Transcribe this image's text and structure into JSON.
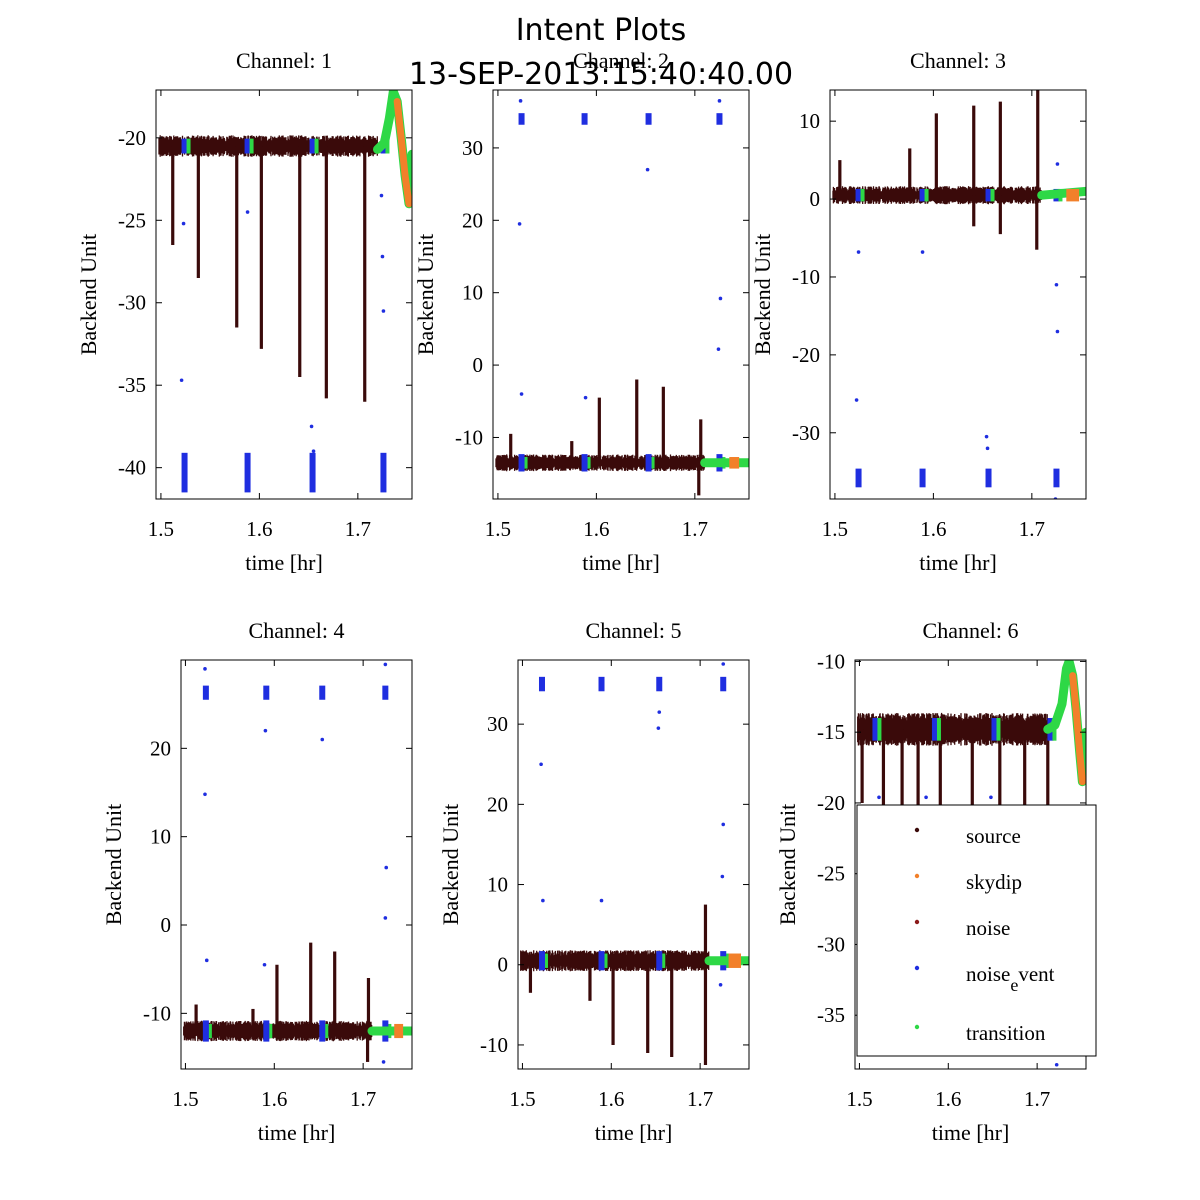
{
  "figure": {
    "title": "Intent Plots",
    "subtitle": "13-SEP-2013:15:40:40.00"
  },
  "colors": {
    "source": "#3a0a0a",
    "skydip": "#f2802a",
    "noise": "#8b1a1a",
    "noise_event": "#1f2ee0",
    "transition": "#2ed846",
    "axis": "#000000"
  },
  "legend": {
    "placement": "inside lower-right of Channel: 6",
    "entries": [
      {
        "key": "source",
        "label": "source"
      },
      {
        "key": "skydip",
        "label": "skydip"
      },
      {
        "key": "noise",
        "label": "noise"
      },
      {
        "key": "noise_event",
        "label": "noise",
        "sub": "e",
        "suffix": "vent"
      },
      {
        "key": "transition",
        "label": "transition"
      }
    ]
  },
  "chart_data": [
    {
      "type": "scatter",
      "title": "Channel: 1",
      "xlabel": "time [hr]",
      "ylabel": "Backend Unit",
      "xlim": [
        1.495,
        1.755
      ],
      "ylim": [
        -41.9,
        -17.1
      ],
      "xticks": [
        1.5,
        1.6,
        1.7
      ],
      "yticks": [
        -20,
        -25,
        -30,
        -35,
        -40
      ],
      "baseline": -20.5,
      "noise_amp": 0.45,
      "cal_times": [
        1.524,
        1.588,
        1.654,
        1.726
      ],
      "cal_high": -20.5,
      "cal_low": -40.3,
      "spikes": [
        {
          "x": 1.512,
          "to": -26.5
        },
        {
          "x": 1.538,
          "to": -28.5
        },
        {
          "x": 1.577,
          "to": -31.5
        },
        {
          "x": 1.602,
          "to": -32.8
        },
        {
          "x": 1.641,
          "to": -34.5
        },
        {
          "x": 1.668,
          "to": -35.8
        },
        {
          "x": 1.707,
          "to": -36.0
        }
      ],
      "outliers": [
        [
          1.521,
          -34.7
        ],
        [
          1.523,
          -25.2
        ],
        [
          1.588,
          -24.5
        ],
        [
          1.653,
          -37.5
        ],
        [
          1.655,
          -39.0
        ],
        [
          1.725,
          -27.2
        ],
        [
          1.726,
          -30.5
        ],
        [
          1.724,
          -23.5
        ]
      ],
      "tail_points": [
        [
          1.72,
          -20.7
        ],
        [
          1.727,
          -20.3
        ],
        [
          1.732,
          -18.8
        ],
        [
          1.736,
          -17.2
        ],
        [
          1.74,
          -17.8
        ],
        [
          1.744,
          -20.0
        ],
        [
          1.748,
          -22.3
        ],
        [
          1.752,
          -24.0
        ],
        [
          1.755,
          -21.0
        ]
      ],
      "tail_skydip_range": [
        1.737,
        1.752
      ]
    },
    {
      "type": "scatter",
      "title": "Channel: 2",
      "xlabel": "time [hr]",
      "ylabel": "Backend Unit",
      "xlim": [
        1.495,
        1.755
      ],
      "ylim": [
        -18.5,
        38
      ],
      "xticks": [
        1.5,
        1.6,
        1.7
      ],
      "yticks": [
        30,
        20,
        10,
        0,
        -10
      ],
      "baseline": -13.5,
      "noise_amp": 0.8,
      "cal_times": [
        1.524,
        1.588,
        1.653,
        1.725
      ],
      "cal_high": 34.0,
      "cal_low": -13.5,
      "spikes": [
        {
          "x": 1.513,
          "to": -9.5
        },
        {
          "x": 1.575,
          "to": -10.5
        },
        {
          "x": 1.603,
          "to": -4.5
        },
        {
          "x": 1.641,
          "to": -2.0
        },
        {
          "x": 1.668,
          "to": -3.0
        },
        {
          "x": 1.706,
          "to": -7.5
        },
        {
          "x": 1.704,
          "to": -18.0
        }
      ],
      "outliers": [
        [
          1.522,
          19.5
        ],
        [
          1.524,
          -4.0
        ],
        [
          1.589,
          -4.5
        ],
        [
          1.652,
          27.0
        ],
        [
          1.726,
          9.2
        ],
        [
          1.724,
          2.2
        ],
        [
          1.725,
          36.5
        ],
        [
          1.523,
          36.5
        ]
      ],
      "tail_points": [
        [
          1.71,
          -13.5
        ],
        [
          1.755,
          -13.5
        ]
      ],
      "tail_skydip_range": [
        1.735,
        1.745
      ]
    },
    {
      "type": "scatter",
      "title": "Channel: 3",
      "xlabel": "time [hr]",
      "ylabel": "Backend Unit",
      "xlim": [
        1.495,
        1.755
      ],
      "ylim": [
        -38.5,
        14
      ],
      "xticks": [
        1.5,
        1.6,
        1.7
      ],
      "yticks": [
        10,
        0,
        -10,
        -20,
        -30
      ],
      "baseline": 0.5,
      "noise_amp": 0.8,
      "cal_times": [
        1.524,
        1.589,
        1.656,
        1.725
      ],
      "cal_high": 0.5,
      "cal_low": -35.8,
      "spikes": [
        {
          "x": 1.505,
          "to": 5.0
        },
        {
          "x": 1.576,
          "to": 6.5
        },
        {
          "x": 1.603,
          "to": 11.0
        },
        {
          "x": 1.641,
          "to": 12.0
        },
        {
          "x": 1.668,
          "to": 12.5
        },
        {
          "x": 1.706,
          "to": 14.0
        },
        {
          "x": 1.705,
          "to": -6.5
        },
        {
          "x": 1.668,
          "to": -4.5
        },
        {
          "x": 1.641,
          "to": -3.5
        }
      ],
      "outliers": [
        [
          1.522,
          -25.8
        ],
        [
          1.524,
          -6.8
        ],
        [
          1.589,
          -6.8
        ],
        [
          1.654,
          -30.5
        ],
        [
          1.655,
          -32.0
        ],
        [
          1.725,
          -11.0
        ],
        [
          1.726,
          -17.0
        ],
        [
          1.726,
          4.5
        ],
        [
          1.724,
          -38.5
        ]
      ],
      "tail_points": [
        [
          1.71,
          0.5
        ],
        [
          1.755,
          1.0
        ]
      ],
      "tail_skydip_range": [
        1.735,
        1.748
      ]
    },
    {
      "type": "scatter",
      "title": "Channel: 4",
      "xlabel": "time [hr]",
      "ylabel": "Backend Unit",
      "xlim": [
        1.495,
        1.755
      ],
      "ylim": [
        -16.3,
        30
      ],
      "xticks": [
        1.5,
        1.6,
        1.7
      ],
      "yticks": [
        20,
        10,
        0,
        -10
      ],
      "baseline": -12.0,
      "noise_amp": 0.8,
      "cal_times": [
        1.523,
        1.591,
        1.654,
        1.725
      ],
      "cal_high": 26.3,
      "cal_low": -12.0,
      "spikes": [
        {
          "x": 1.512,
          "to": -9.0
        },
        {
          "x": 1.576,
          "to": -9.5
        },
        {
          "x": 1.603,
          "to": -4.5
        },
        {
          "x": 1.641,
          "to": -2.0
        },
        {
          "x": 1.668,
          "to": -3.0
        },
        {
          "x": 1.706,
          "to": -6.0
        },
        {
          "x": 1.705,
          "to": -15.5
        }
      ],
      "outliers": [
        [
          1.522,
          14.8
        ],
        [
          1.524,
          -4.0
        ],
        [
          1.589,
          -4.5
        ],
        [
          1.59,
          22.0
        ],
        [
          1.654,
          21.0
        ],
        [
          1.725,
          0.8
        ],
        [
          1.726,
          6.5
        ],
        [
          1.723,
          -15.5
        ],
        [
          1.725,
          29.5
        ],
        [
          1.522,
          29.0
        ]
      ],
      "tail_points": [
        [
          1.71,
          -12.0
        ],
        [
          1.755,
          -12.0
        ]
      ],
      "tail_skydip_range": [
        1.735,
        1.745
      ]
    },
    {
      "type": "scatter",
      "title": "Channel: 5",
      "xlabel": "time [hr]",
      "ylabel": "Backend Unit",
      "xlim": [
        1.495,
        1.755
      ],
      "ylim": [
        -13,
        38
      ],
      "xticks": [
        1.5,
        1.6,
        1.7
      ],
      "yticks": [
        30,
        20,
        10,
        0,
        -10
      ],
      "baseline": 0.5,
      "noise_amp": 0.9,
      "cal_times": [
        1.522,
        1.589,
        1.654,
        1.726
      ],
      "cal_high": 35.0,
      "cal_low": 0.5,
      "spikes": [
        {
          "x": 1.509,
          "to": -3.5
        },
        {
          "x": 1.576,
          "to": -4.5
        },
        {
          "x": 1.602,
          "to": -10.0
        },
        {
          "x": 1.641,
          "to": -11.0
        },
        {
          "x": 1.668,
          "to": -11.5
        },
        {
          "x": 1.706,
          "to": -12.5
        },
        {
          "x": 1.706,
          "to": 7.5
        }
      ],
      "outliers": [
        [
          1.521,
          25.0
        ],
        [
          1.523,
          8.0
        ],
        [
          1.589,
          8.0
        ],
        [
          1.653,
          29.5
        ],
        [
          1.654,
          31.5
        ],
        [
          1.725,
          11.0
        ],
        [
          1.726,
          17.5
        ],
        [
          1.723,
          -2.5
        ],
        [
          1.726,
          37.5
        ]
      ],
      "tail_points": [
        [
          1.71,
          0.5
        ],
        [
          1.755,
          0.5
        ]
      ],
      "tail_skydip_range": [
        1.732,
        1.746
      ]
    },
    {
      "type": "scatter",
      "title": "Channel: 6",
      "xlabel": "time [hr]",
      "ylabel": "Backend Unit",
      "xlim": [
        1.495,
        1.755
      ],
      "ylim": [
        -38.8,
        -9.9
      ],
      "xticks": [
        1.5,
        1.6,
        1.7
      ],
      "yticks": [
        -10,
        -15,
        -20,
        -25,
        -30,
        -35
      ],
      "baseline": -14.8,
      "noise_amp": 0.8,
      "cal_times": [
        1.518,
        1.585,
        1.652,
        1.715
      ],
      "cal_high": -14.8,
      "cal_low": -14.8,
      "spikes": [
        {
          "x": 1.503,
          "to": -20.0
        },
        {
          "x": 1.527,
          "to": -20.5
        },
        {
          "x": 1.548,
          "to": -21.0
        },
        {
          "x": 1.566,
          "to": -21.0
        },
        {
          "x": 1.591,
          "to": -21.0
        },
        {
          "x": 1.627,
          "to": -21.0
        },
        {
          "x": 1.658,
          "to": -21.0
        },
        {
          "x": 1.686,
          "to": -21.0
        },
        {
          "x": 1.712,
          "to": -21.0
        }
      ],
      "outliers": [
        [
          1.522,
          -19.6
        ],
        [
          1.575,
          -19.6
        ],
        [
          1.648,
          -19.6
        ],
        [
          1.722,
          -38.5
        ]
      ],
      "tail_points": [
        [
          1.712,
          -14.8
        ],
        [
          1.72,
          -14.5
        ],
        [
          1.728,
          -13.0
        ],
        [
          1.733,
          -10.5
        ],
        [
          1.736,
          -10.0
        ],
        [
          1.74,
          -11.0
        ],
        [
          1.744,
          -13.5
        ],
        [
          1.748,
          -16.5
        ],
        [
          1.751,
          -18.5
        ],
        [
          1.755,
          -15.0
        ]
      ],
      "tail_skydip_range": [
        1.737,
        1.752
      ]
    }
  ]
}
